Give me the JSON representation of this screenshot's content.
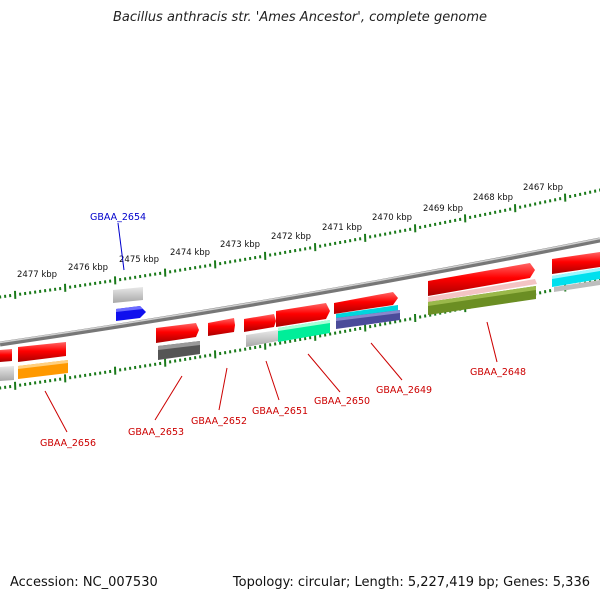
{
  "title": "Bacillus anthracis str. 'Ames Ancestor', complete genome",
  "footer": {
    "accession": "Accession: NC_007530",
    "summary": "Topology: circular; Length: 5,227,419 bp; Genes: 5,336"
  },
  "ticks": [
    "2477 kbp",
    "2476 kbp",
    "2475 kbp",
    "2474 kbp",
    "2473 kbp",
    "2472 kbp",
    "2471 kbp",
    "2470 kbp",
    "2469 kbp",
    "2468 kbp",
    "2467 kbp"
  ],
  "genes": [
    {
      "label": "GBAA_2654",
      "color": "#0000cc",
      "feature_color": "#1010ee"
    },
    {
      "label": "GBAA_2656",
      "color": "#cc0000",
      "feature_color": "#ff9900"
    },
    {
      "label": "GBAA_2653",
      "color": "#cc0000",
      "feature_color": "#555555"
    },
    {
      "label": "GBAA_2652",
      "color": "#cc0000",
      "feature_color": "#ff0000"
    },
    {
      "label": "GBAA_2651",
      "color": "#cc0000",
      "feature_color": "#ff0000"
    },
    {
      "label": "GBAA_2650",
      "color": "#cc0000",
      "feature_color": "#00ee99"
    },
    {
      "label": "GBAA_2649",
      "color": "#cc0000",
      "feature_color": "#4444aa"
    },
    {
      "label": "GBAA_2648",
      "color": "#cc0000",
      "feature_color": "#6b8e23"
    }
  ]
}
